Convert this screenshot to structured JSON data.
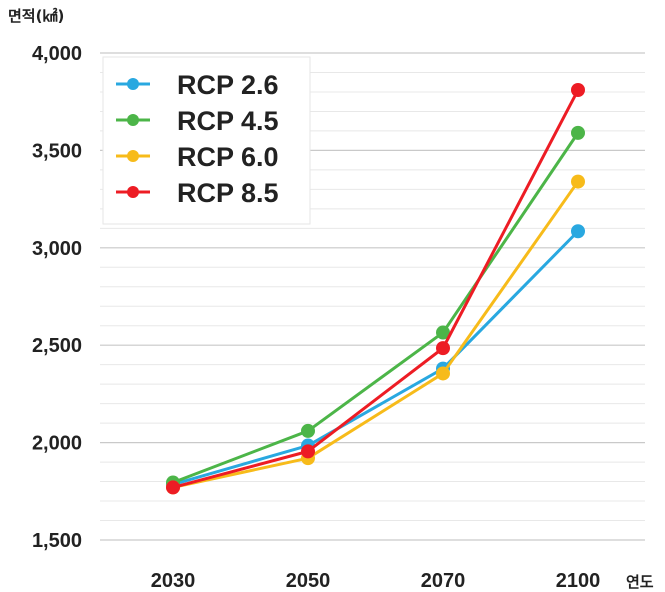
{
  "chart_data": {
    "type": "line",
    "title": "",
    "ylabel": "면적(㎢)",
    "xlabel": "연도",
    "categories": [
      "2030",
      "2050",
      "2070",
      "2100"
    ],
    "ylim": [
      1500,
      4000
    ],
    "yticks": [
      1500,
      2000,
      2500,
      3000,
      3500,
      4000
    ],
    "ytick_labels": [
      "1,500",
      "2,000",
      "2,500",
      "3,000",
      "3,500",
      "4,000"
    ],
    "grid": true,
    "legend_position": "top-left",
    "series": [
      {
        "name": "RCP 2.6",
        "color": "#29a8e0",
        "values": [
          1785,
          1985,
          2380,
          3085
        ]
      },
      {
        "name": "RCP 4.5",
        "color": "#4cb548",
        "values": [
          1795,
          2060,
          2565,
          3590
        ]
      },
      {
        "name": "RCP 6.0",
        "color": "#f7bb1a",
        "values": [
          1770,
          1920,
          2355,
          3340
        ]
      },
      {
        "name": "RCP 8.5",
        "color": "#ed1c24",
        "values": [
          1770,
          1955,
          2485,
          3810
        ]
      }
    ]
  }
}
